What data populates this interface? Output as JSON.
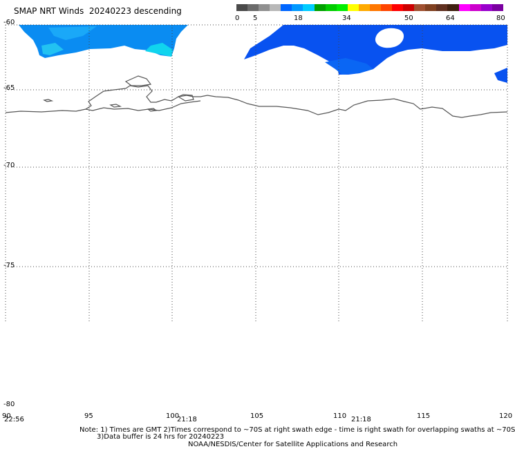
{
  "header": {
    "title": "SMAP NRT Winds",
    "date": "20240223",
    "pass": "descending"
  },
  "colorbar": {
    "labels": [
      "0",
      "5",
      "18",
      "34",
      "50",
      "64",
      "80"
    ],
    "colors": [
      "#4a4a4a",
      "#6b6b6b",
      "#909090",
      "#b8b8b8",
      "#0066ff",
      "#0099ff",
      "#00ccff",
      "#00a000",
      "#00cc00",
      "#00ee00",
      "#ffff00",
      "#ffaa00",
      "#ff7700",
      "#ff4400",
      "#ff0000",
      "#cc0000",
      "#a05030",
      "#804020",
      "#603020",
      "#402010",
      "#ff00ff",
      "#cc00cc",
      "#9900cc",
      "#7a00a0"
    ]
  },
  "axes": {
    "lat_labels": [
      "-60",
      "-65",
      "-70",
      "-75",
      "-80"
    ],
    "lon_labels": [
      "90",
      "95",
      "100",
      "105",
      "110",
      "115",
      "120"
    ]
  },
  "swath_times": [
    "22:56",
    "21:18",
    "21:18"
  ],
  "notes": {
    "line1": "Note: 1) Times are GMT 2)Times correspond to ~70S at right swath edge - time is right swath for overlapping swaths at ~70S",
    "line2": "3)Data buffer is 24 hrs for 20240223",
    "line3": "NOAA/NESDIS/Center for Satellite Applications and Research"
  }
}
